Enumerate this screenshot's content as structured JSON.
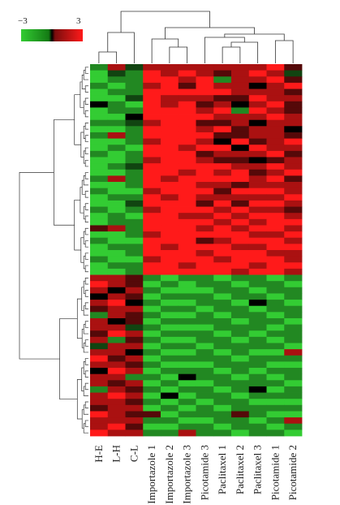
{
  "chart_data": {
    "type": "heatmap",
    "colorbar": {
      "min_label": "−3",
      "max_label": "3",
      "min": -3,
      "max": 3,
      "low_color": "#33cc33",
      "mid_color": "#000000",
      "high_color": "#ff1a1a"
    },
    "columns": [
      "H-E",
      "L-H",
      "C-L",
      "Importazole 1",
      "Importazole 2",
      "Importazole 3",
      "Picotamide 3",
      "Paclitaxel 1",
      "Paclitaxel 2",
      "Paclitaxel 3",
      "Picotamide 1",
      "Picotamide 2"
    ],
    "values": [
      [
        -2,
        2,
        -1,
        2,
        2,
        2,
        2,
        2,
        2,
        2,
        3,
        1
      ],
      [
        -3,
        -1,
        -2,
        3,
        2,
        3,
        2,
        1,
        2,
        3,
        2,
        -1
      ],
      [
        -3,
        -2,
        -2,
        3,
        3,
        2,
        3,
        -2,
        2,
        2,
        3,
        1
      ],
      [
        -2,
        -3,
        -2,
        2,
        3,
        1,
        3,
        2,
        2,
        0,
        2,
        3
      ],
      [
        -3,
        -2,
        -2,
        3,
        3,
        3,
        3,
        3,
        2,
        2,
        2,
        1
      ],
      [
        -3,
        -3,
        -1,
        3,
        2,
        2,
        2,
        1,
        1,
        3,
        2,
        2
      ],
      [
        0,
        -2,
        -3,
        3,
        2,
        3,
        1,
        2,
        0,
        2,
        3,
        1
      ],
      [
        -3,
        -2,
        -2,
        3,
        3,
        3,
        2,
        3,
        -2,
        3,
        2,
        1
      ],
      [
        -3,
        -3,
        0,
        3,
        3,
        3,
        3,
        2,
        2,
        2,
        3,
        2
      ],
      [
        -2,
        -2,
        -1,
        2,
        3,
        3,
        1,
        1,
        2,
        0,
        2,
        2
      ],
      [
        -3,
        -3,
        -2,
        3,
        3,
        3,
        2,
        3,
        1,
        2,
        2,
        0
      ],
      [
        -2,
        2,
        -2,
        3,
        3,
        3,
        3,
        1,
        1,
        2,
        2,
        1
      ],
      [
        -3,
        -3,
        -2,
        2,
        3,
        3,
        2,
        0,
        3,
        1,
        2,
        3
      ],
      [
        -3,
        -2,
        -3,
        3,
        3,
        2,
        3,
        3,
        0,
        3,
        2,
        2
      ],
      [
        -2,
        -3,
        -2,
        3,
        3,
        3,
        1,
        2,
        2,
        2,
        3,
        1
      ],
      [
        -3,
        -3,
        -2,
        2,
        3,
        3,
        2,
        1,
        1,
        0,
        1,
        2
      ],
      [
        -3,
        -2,
        -1,
        3,
        3,
        3,
        3,
        3,
        2,
        2,
        3,
        2
      ],
      [
        -3,
        -3,
        -2,
        3,
        3,
        2,
        3,
        2,
        3,
        1,
        2,
        3
      ],
      [
        -2,
        2,
        -2,
        3,
        2,
        3,
        3,
        3,
        3,
        2,
        3,
        1
      ],
      [
        -3,
        -3,
        -2,
        3,
        3,
        3,
        2,
        2,
        1,
        2,
        2,
        2
      ],
      [
        -2,
        -3,
        -3,
        2,
        3,
        3,
        3,
        1,
        3,
        3,
        3,
        2
      ],
      [
        -3,
        -2,
        -2,
        3,
        2,
        3,
        2,
        2,
        2,
        2,
        2,
        3
      ],
      [
        -3,
        -3,
        -1,
        3,
        3,
        3,
        1,
        3,
        1,
        3,
        3,
        2
      ],
      [
        -2,
        -3,
        -2,
        2,
        3,
        3,
        3,
        2,
        3,
        2,
        2,
        1
      ],
      [
        -3,
        -2,
        -3,
        3,
        3,
        2,
        2,
        3,
        2,
        3,
        3,
        2
      ],
      [
        -3,
        -2,
        -2,
        3,
        3,
        3,
        3,
        2,
        3,
        2,
        3,
        3
      ],
      [
        1,
        2,
        -2,
        3,
        3,
        3,
        2,
        3,
        2,
        3,
        3,
        2
      ],
      [
        -3,
        -3,
        -2,
        2,
        3,
        3,
        3,
        3,
        3,
        2,
        2,
        3
      ],
      [
        -2,
        -3,
        -3,
        3,
        3,
        3,
        1,
        2,
        3,
        3,
        3,
        2
      ],
      [
        -3,
        -2,
        -2,
        3,
        2,
        3,
        3,
        3,
        2,
        2,
        3,
        3
      ],
      [
        -3,
        -3,
        -2,
        3,
        3,
        3,
        2,
        3,
        3,
        3,
        2,
        2
      ],
      [
        -2,
        -3,
        -3,
        2,
        3,
        3,
        3,
        2,
        3,
        3,
        3,
        2
      ],
      [
        -3,
        -2,
        -2,
        3,
        3,
        2,
        3,
        3,
        3,
        2,
        3,
        3
      ],
      [
        -3,
        -3,
        -2,
        3,
        3,
        3,
        3,
        3,
        2,
        3,
        3,
        2
      ],
      [
        2,
        2,
        1,
        -2,
        -3,
        -2,
        -2,
        -3,
        -2,
        -2,
        -3,
        -2
      ],
      [
        3,
        2,
        1,
        -3,
        -2,
        -3,
        -2,
        -2,
        -3,
        -2,
        -2,
        -3
      ],
      [
        2,
        0,
        2,
        -2,
        -3,
        -3,
        -3,
        -2,
        -2,
        -3,
        -2,
        -2
      ],
      [
        0,
        2,
        1,
        -3,
        -2,
        -2,
        -2,
        -3,
        -2,
        -2,
        -3,
        -2
      ],
      [
        2,
        3,
        0,
        -2,
        -3,
        -3,
        -2,
        -2,
        -3,
        0,
        -2,
        -3
      ],
      [
        1,
        2,
        2,
        -3,
        -2,
        -2,
        -3,
        -2,
        -2,
        -3,
        -2,
        -2
      ],
      [
        -2,
        2,
        1,
        -2,
        -3,
        -3,
        -2,
        -3,
        -2,
        -2,
        -3,
        -2
      ],
      [
        2,
        0,
        1,
        -3,
        -2,
        -2,
        -2,
        -2,
        -3,
        -2,
        -2,
        -3
      ],
      [
        2,
        2,
        -1,
        -2,
        -3,
        -3,
        -3,
        -2,
        -2,
        -2,
        -3,
        -2
      ],
      [
        1,
        3,
        2,
        -3,
        -2,
        -2,
        -2,
        -3,
        -2,
        -3,
        -2,
        -2
      ],
      [
        2,
        -2,
        1,
        -2,
        -3,
        -3,
        -2,
        -2,
        -3,
        -2,
        -3,
        -2
      ],
      [
        -1,
        2,
        2,
        -3,
        -2,
        -2,
        -3,
        -2,
        -2,
        -2,
        -2,
        -3
      ],
      [
        2,
        2,
        0,
        -2,
        -3,
        -3,
        -2,
        -3,
        -2,
        -3,
        -3,
        2
      ],
      [
        3,
        1,
        2,
        -3,
        -2,
        -2,
        -2,
        -2,
        -3,
        -2,
        -2,
        -2
      ],
      [
        2,
        2,
        1,
        -2,
        -3,
        -3,
        -3,
        -2,
        -2,
        -2,
        -3,
        -3
      ],
      [
        0,
        3,
        2,
        -3,
        -2,
        -2,
        -2,
        -3,
        -2,
        -3,
        -2,
        -2
      ],
      [
        2,
        2,
        -2,
        -2,
        -3,
        0,
        -2,
        -2,
        -3,
        -2,
        -3,
        -2
      ],
      [
        2,
        1,
        2,
        -3,
        -2,
        -3,
        -3,
        -2,
        -2,
        -2,
        -2,
        -3
      ],
      [
        -2,
        2,
        1,
        -2,
        -3,
        -2,
        -2,
        -3,
        -2,
        0,
        -3,
        -2
      ],
      [
        2,
        3,
        2,
        -3,
        0,
        -3,
        -2,
        -2,
        -3,
        -2,
        -2,
        -2
      ],
      [
        2,
        2,
        1,
        -2,
        -3,
        -2,
        -3,
        -2,
        -2,
        -3,
        -3,
        -3
      ],
      [
        1,
        2,
        2,
        -3,
        -2,
        -3,
        -2,
        -3,
        -2,
        -2,
        -2,
        -2
      ],
      [
        3,
        2,
        1,
        1,
        -3,
        -2,
        -2,
        -2,
        1,
        -2,
        -3,
        -3
      ],
      [
        2,
        2,
        2,
        -2,
        -2,
        -3,
        -3,
        -2,
        -2,
        -3,
        -2,
        2
      ],
      [
        2,
        3,
        1,
        -3,
        -3,
        -2,
        -2,
        -3,
        -2,
        -2,
        -3,
        -2
      ],
      [
        3,
        2,
        2,
        -2,
        -2,
        2,
        -2,
        -2,
        -3,
        -2,
        -2,
        -3
      ]
    ]
  }
}
